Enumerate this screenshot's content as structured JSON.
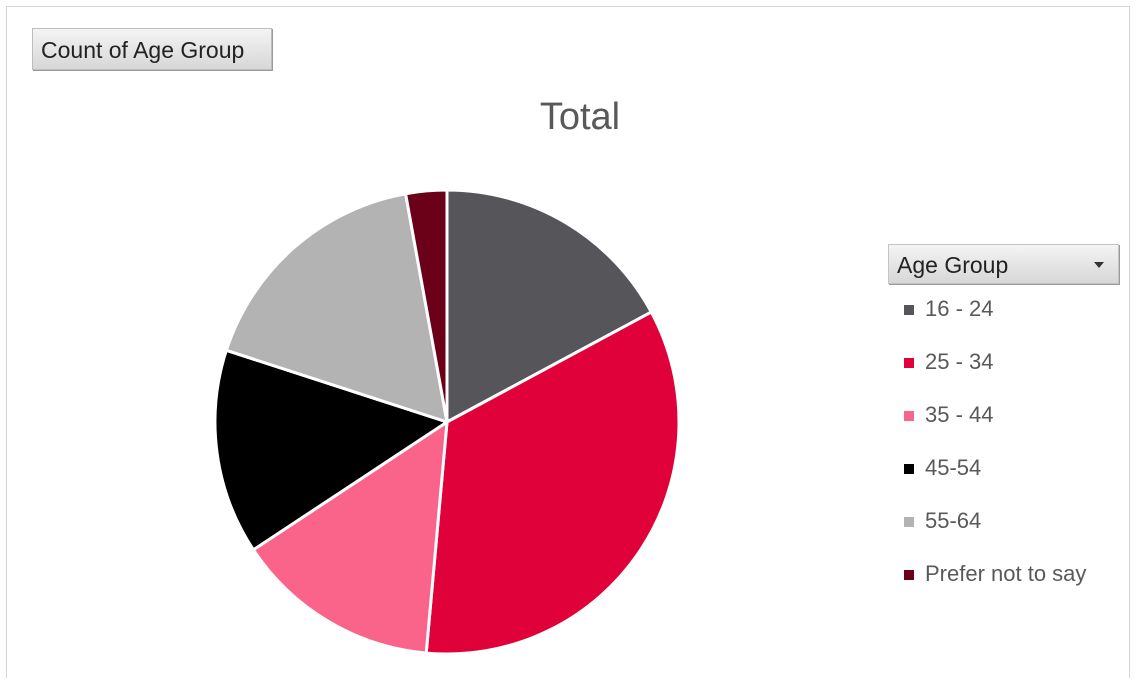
{
  "field_button": {
    "label": "Count of Age Group"
  },
  "legend": {
    "header": "Age Group"
  },
  "chart_data": {
    "type": "pie",
    "title": "Total",
    "categories": [
      "16 - 24",
      "25 - 34",
      "35 - 44",
      "45-54",
      "55-64",
      "Prefer not to say"
    ],
    "values": [
      18,
      36,
      15,
      15,
      18,
      3
    ],
    "colors": [
      "#56555a",
      "#e0003a",
      "#fa648a",
      "#000000",
      "#b3b3b3",
      "#6b0019"
    ],
    "legend_position": "right",
    "start_angle_deg": 0,
    "direction": "clockwise"
  }
}
